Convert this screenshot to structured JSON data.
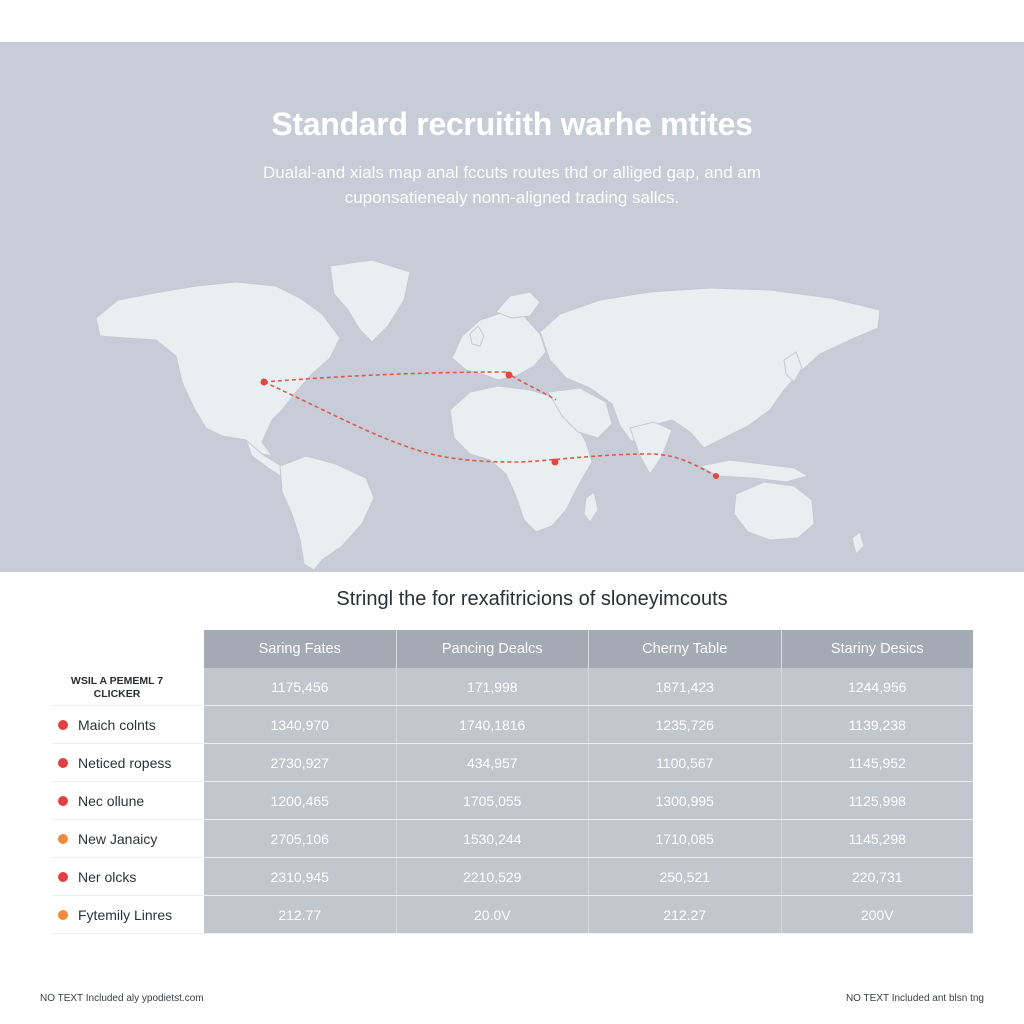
{
  "header": {
    "title": "Standard recruitith warhe mtites",
    "subtitle": "Dualal-and xials map anal fccuts routes thd or alliged gap, and am cuponsatienealy nonn-aligned trading sallcs."
  },
  "map": {
    "route_color": "#e05a4c",
    "land_color": "#e9eef0",
    "water_color": "#c7ccd6"
  },
  "table": {
    "title": "Stringl the for rexafitricions of sloneyimcouts",
    "stub_header": "WSIL A PEMEML 7 CLICKER",
    "columns": [
      "Saring Fates",
      "Pancing Dealcs",
      "Cherny Table",
      "Stariny Desics"
    ],
    "rows": [
      {
        "label": "",
        "dot": "",
        "values": [
          "1175,456",
          "171,998",
          "1871,423",
          "1244,956"
        ]
      },
      {
        "label": "Maich colnts",
        "dot": "#e0413c",
        "values": [
          "1340,970",
          "1740,1816",
          "1235,726",
          "1139,238"
        ]
      },
      {
        "label": "Neticed ropess",
        "dot": "#e0413c",
        "values": [
          "2730,927",
          "434,957",
          "1100,567",
          "1145,952"
        ]
      },
      {
        "label": "Nec ollune",
        "dot": "#e0413c",
        "values": [
          "1200,465",
          "1705,055",
          "1300,995",
          "1125,998"
        ]
      },
      {
        "label": "New Janaicy",
        "dot": "#f08a3c",
        "values": [
          "2705,106",
          "1530,244",
          "1710,085",
          "1145,298"
        ]
      },
      {
        "label": "Ner olcks",
        "dot": "#e0413c",
        "values": [
          "2310,945",
          "2210,529",
          "250,521",
          "220,731"
        ]
      },
      {
        "label": "Fytemily Linres",
        "dot": "#f08a3c",
        "values": [
          "212.77",
          "20.0V",
          "212.27",
          "200V"
        ]
      }
    ]
  },
  "footer": {
    "left": "NO TEXT Included aly ypodietst.com",
    "right": "NO TEXT Included ant blsn tng"
  }
}
